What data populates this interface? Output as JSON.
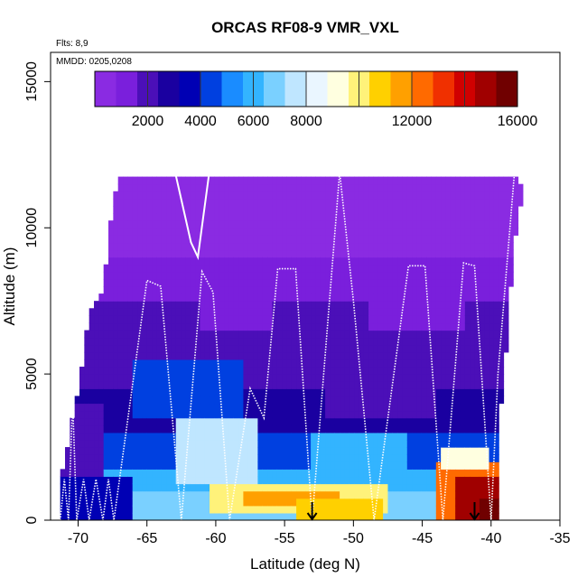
{
  "chart_data": {
    "type": "heatmap",
    "title": "ORCAS RF08-9 VMR_VXL",
    "annotations": [
      "Flts: 8,9",
      "MMDD: 0205,0208"
    ],
    "xlabel": "Latitude (deg N)",
    "ylabel": "Altitude (m)",
    "xlim": [
      -72,
      -35
    ],
    "ylim": [
      0,
      16000
    ],
    "x_ticks": [
      -70,
      -65,
      -60,
      -55,
      -50,
      -45,
      -40,
      -35
    ],
    "x_tick_labels": [
      "-70",
      "-65",
      "-60",
      "-55",
      "-50",
      "-45",
      "-40",
      "-35"
    ],
    "y_ticks": [
      0,
      5000,
      10000,
      15000
    ],
    "y_tick_labels": [
      "0",
      "5000",
      "10000",
      "15000"
    ],
    "colorbar": {
      "range": [
        0,
        16000
      ],
      "ticks": [
        2000,
        4000,
        6000,
        8000,
        12000,
        16000
      ],
      "tick_labels": [
        "2000",
        "4000",
        "6000",
        "8000",
        "12000",
        "16000"
      ],
      "colors": [
        "#8a2be2",
        "#7a1fdc",
        "#4b0fb8",
        "#1a00a0",
        "#0000b4",
        "#0040e0",
        "#1a8cff",
        "#33b4ff",
        "#7ad0ff",
        "#bfe6ff",
        "#eaf6ff",
        "#ffffe0",
        "#fff27a",
        "#ffd000",
        "#ffa000",
        "#ff6a00",
        "#f03000",
        "#d00000",
        "#a00000",
        "#700000"
      ]
    },
    "arrows_at_lat": [
      -53,
      -41.2
    ],
    "ceiling_profile": [
      {
        "lat": -71.2,
        "alt": 1500
      },
      {
        "lat": -70.4,
        "alt": 3500
      },
      {
        "lat": -69.8,
        "alt": 5000
      },
      {
        "lat": -69.2,
        "alt": 7000
      },
      {
        "lat": -68.2,
        "alt": 8000
      },
      {
        "lat": -67.8,
        "alt": 9500
      },
      {
        "lat": -67.4,
        "alt": 11000
      },
      {
        "lat": -66.8,
        "alt": 11800
      },
      {
        "lat": -38.4,
        "alt": 11800
      },
      {
        "lat": -37.6,
        "alt": 11200
      },
      {
        "lat": -38.2,
        "alt": 10000
      },
      {
        "lat": -38.6,
        "alt": 8000
      },
      {
        "lat": -38.9,
        "alt": 6000
      },
      {
        "lat": -39.4,
        "alt": 3500
      },
      {
        "lat": -39.4,
        "alt": 0
      }
    ],
    "bands": [
      {
        "alt0": 11000,
        "alt1": 11800,
        "value": 200
      },
      {
        "alt0": 9000,
        "alt1": 11000,
        "value": 600
      },
      {
        "alt0": 7500,
        "alt1": 9000,
        "value": 1100
      },
      {
        "alt0": 6000,
        "alt1": 7500,
        "value": 1700
      },
      {
        "alt0": 4500,
        "alt1": 6000,
        "value": 2200
      },
      {
        "alt0": 3000,
        "alt1": 4500,
        "value": 2900
      },
      {
        "alt0": 1800,
        "alt1": 3000,
        "value": 4200
      },
      {
        "alt0": 900,
        "alt1": 1800,
        "value": 5800
      },
      {
        "alt0": 0,
        "alt1": 900,
        "value": 7000
      }
    ],
    "anomalies": [
      {
        "lat0": -60.5,
        "lat1": -47.5,
        "alt0": 300,
        "alt1": 1200,
        "value": 10200
      },
      {
        "lat0": -58.0,
        "lat1": -51.0,
        "alt0": 500,
        "alt1": 1000,
        "value": 11400
      },
      {
        "lat0": -54.0,
        "lat1": -48.0,
        "alt0": 100,
        "alt1": 800,
        "value": 10800
      },
      {
        "lat0": -44.0,
        "lat1": -39.5,
        "alt0": 0,
        "alt1": 2000,
        "value": 12500
      },
      {
        "lat0": -42.5,
        "lat1": -39.5,
        "alt0": 0,
        "alt1": 1500,
        "value": 14500
      },
      {
        "lat0": -41.0,
        "lat1": -39.5,
        "alt0": 0,
        "alt1": 700,
        "value": 15600
      },
      {
        "lat0": -43.5,
        "lat1": -40.0,
        "alt0": 1800,
        "alt1": 2600,
        "value": 9000
      },
      {
        "lat0": -63.0,
        "lat1": -57.0,
        "alt0": 1200,
        "alt1": 3500,
        "value": 7200
      },
      {
        "lat0": -53.0,
        "lat1": -46.0,
        "alt0": 1500,
        "alt1": 3000,
        "value": 5600
      },
      {
        "lat0": -66.0,
        "lat1": -58.0,
        "alt0": 3500,
        "alt1": 5500,
        "value": 4400
      },
      {
        "lat0": -52.0,
        "lat1": -44.0,
        "alt0": 3500,
        "alt1": 6500,
        "value": 1600
      },
      {
        "lat0": -49.0,
        "lat1": -42.0,
        "alt0": 6500,
        "alt1": 8500,
        "value": 900
      },
      {
        "lat0": -61.0,
        "lat1": -56.0,
        "alt0": 6500,
        "alt1": 8500,
        "value": 800
      },
      {
        "lat0": -71.2,
        "lat1": -66.0,
        "alt0": 0,
        "alt1": 1500,
        "value": 3400
      },
      {
        "lat0": -71.2,
        "lat1": -68.0,
        "alt0": 1500,
        "alt1": 4000,
        "value": 1700
      }
    ],
    "flight_track_solid": [
      {
        "lat": -67.5,
        "alt": 11800
      },
      {
        "lat": -65.0,
        "alt": 11900
      },
      {
        "lat": -63.0,
        "alt": 12000
      },
      {
        "lat": -61.8,
        "alt": 9500
      },
      {
        "lat": -61.3,
        "alt": 9000
      },
      {
        "lat": -60.5,
        "alt": 11800
      },
      {
        "lat": -57.0,
        "alt": 11900
      },
      {
        "lat": -53.0,
        "alt": 11900
      },
      {
        "lat": -49.0,
        "alt": 11900
      },
      {
        "lat": -45.0,
        "alt": 11900
      },
      {
        "lat": -41.0,
        "alt": 11900
      },
      {
        "lat": -38.5,
        "alt": 11900
      }
    ],
    "flight_track_dotted": [
      {
        "lat": -71.3,
        "alt": 0
      },
      {
        "lat": -71.0,
        "alt": 1400
      },
      {
        "lat": -70.7,
        "alt": 0
      },
      {
        "lat": -70.4,
        "alt": 4100
      },
      {
        "lat": -70.1,
        "alt": 0
      },
      {
        "lat": -69.6,
        "alt": 1400
      },
      {
        "lat": -69.2,
        "alt": 0
      },
      {
        "lat": -68.7,
        "alt": 1400
      },
      {
        "lat": -68.2,
        "alt": 0
      },
      {
        "lat": -67.8,
        "alt": 1400
      },
      {
        "lat": -67.4,
        "alt": 0
      },
      {
        "lat": -65.0,
        "alt": 8200
      },
      {
        "lat": -64.0,
        "alt": 8000
      },
      {
        "lat": -62.5,
        "alt": 0
      },
      {
        "lat": -61.0,
        "alt": 8500
      },
      {
        "lat": -60.2,
        "alt": 7800
      },
      {
        "lat": -59.0,
        "alt": 0
      },
      {
        "lat": -57.5,
        "alt": 4500
      },
      {
        "lat": -56.5,
        "alt": 3500
      },
      {
        "lat": -55.5,
        "alt": 8600
      },
      {
        "lat": -54.2,
        "alt": 8600
      },
      {
        "lat": -53.0,
        "alt": 0
      },
      {
        "lat": -51.0,
        "alt": 11900
      },
      {
        "lat": -50.0,
        "alt": 7500
      },
      {
        "lat": -48.5,
        "alt": 0
      },
      {
        "lat": -46.0,
        "alt": 8700
      },
      {
        "lat": -44.8,
        "alt": 8700
      },
      {
        "lat": -43.5,
        "alt": 0
      },
      {
        "lat": -42.0,
        "alt": 8800
      },
      {
        "lat": -41.2,
        "alt": 8700
      },
      {
        "lat": -40.0,
        "alt": 0
      },
      {
        "lat": -39.5,
        "alt": 5000
      },
      {
        "lat": -38.3,
        "alt": 11900
      }
    ]
  }
}
